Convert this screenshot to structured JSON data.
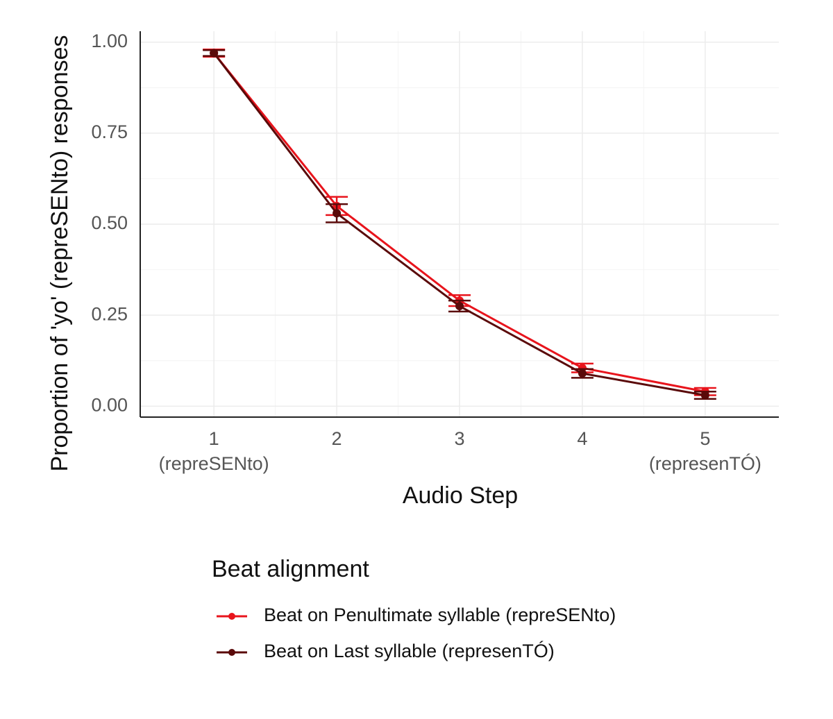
{
  "chart_data": {
    "type": "line",
    "x_label": "Audio Step",
    "y_label": "Proportion of 'yo' (repreSENto) responses",
    "legend_title": "Beat alignment",
    "x": [
      1,
      2,
      3,
      4,
      5
    ],
    "series": [
      {
        "name": "Beat on Penultimate syllable (repreSENto)",
        "color": "#e8141c",
        "values": [
          0.97,
          0.55,
          0.29,
          0.105,
          0.04
        ],
        "errors": [
          0.01,
          0.025,
          0.015,
          0.012,
          0.01
        ]
      },
      {
        "name": "Beat on Last syllable (represenTÓ)",
        "color": "#5a0a0a",
        "values": [
          0.97,
          0.53,
          0.275,
          0.09,
          0.03
        ],
        "errors": [
          0.008,
          0.025,
          0.015,
          0.012,
          0.01
        ]
      }
    ],
    "xlim": [
      0.4,
      5.6
    ],
    "xticks": [
      {
        "value": 1,
        "label": "1\n(repreSENto)"
      },
      2,
      3,
      4,
      {
        "value": 5,
        "label": "5\n(represenTÓ)"
      }
    ],
    "ylim": [
      -0.03,
      1.03
    ],
    "yticks": [
      {
        "value": 0,
        "label": "0.00"
      },
      {
        "value": 0.25,
        "label": "0.25"
      },
      {
        "value": 0.5,
        "label": "0.50"
      },
      {
        "value": 0.75,
        "label": "0.75"
      },
      {
        "value": 1,
        "label": "1.00"
      }
    ],
    "grid": true
  }
}
